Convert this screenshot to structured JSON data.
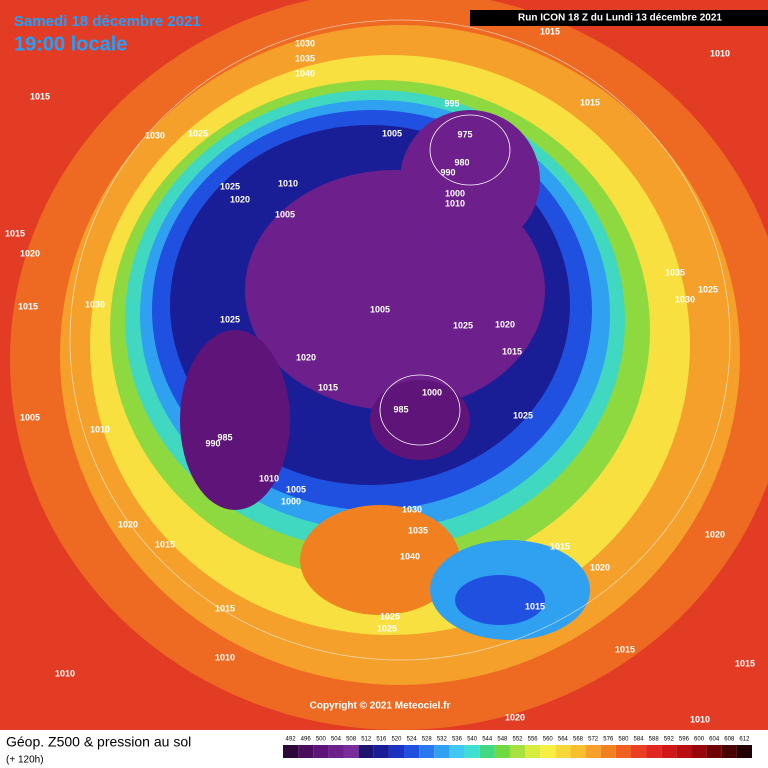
{
  "header": {
    "date": "Samedi 18 décembre 2021",
    "time": "19:00 locale",
    "run": "Run ICON 18 Z du Lundi 13 décembre 2021"
  },
  "footer": {
    "title": "Géop. Z500 & pression au sol",
    "lead": "(+ 120h)",
    "copyright": "Copyright © 2021 Meteociel.fr"
  },
  "legend": {
    "values": [
      492,
      496,
      500,
      504,
      508,
      512,
      516,
      520,
      524,
      528,
      532,
      536,
      540,
      544,
      548,
      552,
      556,
      560,
      564,
      568,
      572,
      576,
      580,
      584,
      588,
      592,
      596,
      600,
      604,
      608,
      612
    ],
    "colors": [
      "#2b0838",
      "#4a0d5e",
      "#5e1478",
      "#6d1f8c",
      "#7a2c9c",
      "#1c1470",
      "#1a1e96",
      "#1c32c0",
      "#2050e0",
      "#2a78f0",
      "#30a0f0",
      "#40c8f0",
      "#40e0d0",
      "#40d880",
      "#70d840",
      "#a8e040",
      "#d8ec40",
      "#f8f040",
      "#f8d838",
      "#f8c030",
      "#f8a028",
      "#f08020",
      "#f06020",
      "#e84020",
      "#e02820",
      "#d01818",
      "#b81010",
      "#980808",
      "#700404",
      "#480202",
      "#200000"
    ]
  },
  "isobar_labels": [
    "1030",
    "1035",
    "1040",
    "1015",
    "1030",
    "1025",
    "1005",
    "995",
    "975",
    "980",
    "990",
    "1000",
    "1010",
    "1015",
    "1015",
    "1010",
    "1025",
    "1020",
    "1010",
    "1005",
    "1015",
    "1020",
    "1030",
    "1015",
    "1025",
    "1005",
    "1025",
    "1020",
    "1015",
    "1020",
    "1015",
    "985",
    "1000",
    "1025",
    "990",
    "985",
    "1010",
    "1005",
    "1000",
    "1030",
    "1035",
    "1040",
    "1020",
    "1015",
    "1015",
    "1010",
    "1010",
    "1025",
    "1025",
    "1015",
    "1015",
    "1020",
    "1035",
    "1030",
    "1025",
    "1015",
    "1020",
    "1010",
    "1020",
    "1015",
    "1005",
    "1010"
  ]
}
